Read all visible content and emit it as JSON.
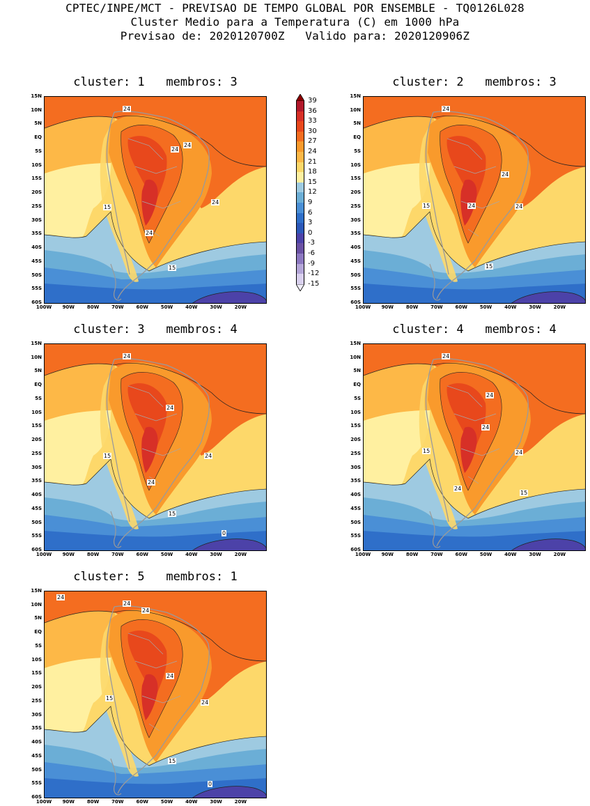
{
  "header": {
    "line1": "CPTEC/INPE/MCT - PREVISAO DE TEMPO GLOBAL POR ENSEMBLE - TQ0126L028",
    "line2": "Cluster Medio para a Temperatura (C) em 1000 hPa",
    "line3": "Previsao de: 2020120700Z   Valido para: 2020120906Z"
  },
  "axes": {
    "lat_labels": [
      "15N",
      "10N",
      "5N",
      "EQ",
      "5S",
      "10S",
      "15S",
      "20S",
      "25S",
      "30S",
      "35S",
      "40S",
      "45S",
      "50S",
      "55S",
      "60S"
    ],
    "lon_labels": [
      "100W",
      "90W",
      "80W",
      "70W",
      "60W",
      "50W",
      "40W",
      "30W",
      "20W"
    ]
  },
  "colorbar": {
    "levels": [
      "39",
      "36",
      "33",
      "30",
      "27",
      "24",
      "21",
      "18",
      "15",
      "12",
      "9",
      "6",
      "3",
      "0",
      "-3",
      "-6",
      "-9",
      "-12",
      "-15"
    ],
    "colors": [
      "#8b0000",
      "#b2182b",
      "#d73027",
      "#e8481c",
      "#f46d20",
      "#f99a2c",
      "#fdb847",
      "#fdd86a",
      "#fff0a0",
      "#9ecae1",
      "#6baed6",
      "#4a8fd6",
      "#2f6fc9",
      "#2c58b9",
      "#4c42a8",
      "#6a51a3",
      "#8c78c0",
      "#b4a6d8",
      "#d9d0ee",
      "#f0eefa"
    ]
  },
  "panels": [
    {
      "title": "cluster: 1   membros: 3",
      "labels": [
        {
          "text": "24",
          "x": 113,
          "y": 14
        },
        {
          "text": "24",
          "x": 182,
          "y": 72
        },
        {
          "text": "24",
          "x": 200,
          "y": 66
        },
        {
          "text": "15",
          "x": 85,
          "y": 155
        },
        {
          "text": "24",
          "x": 240,
          "y": 148
        },
        {
          "text": "24",
          "x": 145,
          "y": 192
        },
        {
          "text": "15",
          "x": 178,
          "y": 242
        }
      ]
    },
    {
      "title": "cluster: 2   membros: 3",
      "labels": [
        {
          "text": "24",
          "x": 113,
          "y": 14
        },
        {
          "text": "24",
          "x": 198,
          "y": 108
        },
        {
          "text": "15",
          "x": 85,
          "y": 153
        },
        {
          "text": "24",
          "x": 150,
          "y": 153
        },
        {
          "text": "24",
          "x": 218,
          "y": 154
        },
        {
          "text": "15",
          "x": 175,
          "y": 240
        }
      ]
    },
    {
      "title": "cluster: 3   membros: 4",
      "labels": [
        {
          "text": "24",
          "x": 113,
          "y": 14
        },
        {
          "text": "24",
          "x": 175,
          "y": 88
        },
        {
          "text": "15",
          "x": 85,
          "y": 157
        },
        {
          "text": "24",
          "x": 230,
          "y": 157
        },
        {
          "text": "24",
          "x": 148,
          "y": 195
        },
        {
          "text": "15",
          "x": 178,
          "y": 240
        },
        {
          "text": "0",
          "x": 255,
          "y": 268
        }
      ]
    },
    {
      "title": "cluster: 4   membros: 4",
      "labels": [
        {
          "text": "24",
          "x": 113,
          "y": 14
        },
        {
          "text": "24",
          "x": 176,
          "y": 70
        },
        {
          "text": "24",
          "x": 170,
          "y": 116
        },
        {
          "text": "15",
          "x": 85,
          "y": 150
        },
        {
          "text": "24",
          "x": 218,
          "y": 152
        },
        {
          "text": "24",
          "x": 130,
          "y": 204
        },
        {
          "text": "15",
          "x": 225,
          "y": 210
        }
      ]
    },
    {
      "title": "cluster: 5   membros: 1",
      "labels": [
        {
          "text": "24",
          "x": 18,
          "y": 5
        },
        {
          "text": "24",
          "x": 113,
          "y": 14
        },
        {
          "text": "24",
          "x": 140,
          "y": 24
        },
        {
          "text": "24",
          "x": 175,
          "y": 118
        },
        {
          "text": "15",
          "x": 88,
          "y": 150
        },
        {
          "text": "24",
          "x": 225,
          "y": 156
        },
        {
          "text": "15",
          "x": 178,
          "y": 240
        },
        {
          "text": "0",
          "x": 235,
          "y": 273
        }
      ]
    }
  ]
}
